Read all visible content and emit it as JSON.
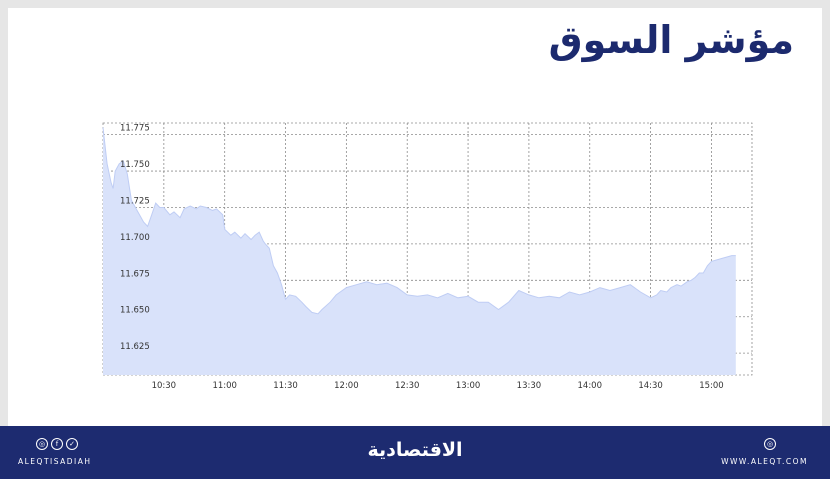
{
  "title": "مؤشر السوق",
  "colors": {
    "title": "#1c2a6e",
    "area_fill": "#d9e2fa",
    "area_line": "#bfcdf4",
    "grid": "#8c8c8c",
    "footer": "#1d2b70"
  },
  "chart_data": {
    "type": "area",
    "title": "",
    "xlabel": "",
    "ylabel": "",
    "x_tick_labels": [
      "10:30",
      "11:00",
      "11:30",
      "12:00",
      "12:30",
      "13:00",
      "13:30",
      "14:00",
      "14:30",
      "15:00"
    ],
    "y_tick_labels": [
      "11.775",
      "11.750",
      "11.725",
      "11.700",
      "11.675",
      "11.650",
      "11.625"
    ],
    "ylim": [
      11.61,
      11.783
    ],
    "xlim": [
      "10:00",
      "15:20"
    ],
    "grid": true,
    "series": [
      {
        "x": [
          "10:00",
          "10:02",
          "10:04",
          "10:05",
          "10:06",
          "10:08",
          "10:10",
          "10:12",
          "10:14",
          "10:16",
          "10:18",
          "10:20",
          "10:22",
          "10:24",
          "10:26",
          "10:28",
          "10:30",
          "10:33",
          "10:35",
          "10:38",
          "10:40",
          "10:43",
          "10:46",
          "10:48",
          "10:51",
          "10:54",
          "10:56",
          "10:59",
          "11:00",
          "11:03",
          "11:05",
          "11:08",
          "11:10",
          "11:13",
          "11:15",
          "11:17",
          "11:19",
          "11:20",
          "11:22",
          "11:24",
          "11:26",
          "11:28",
          "11:30",
          "11:32",
          "11:35",
          "11:38",
          "11:40",
          "11:43",
          "11:46",
          "11:48",
          "11:52",
          "11:55",
          "12:00",
          "12:05",
          "12:10",
          "12:15",
          "12:20",
          "12:25",
          "12:30",
          "12:35",
          "12:40",
          "12:45",
          "12:50",
          "12:55",
          "13:00",
          "13:05",
          "13:10",
          "13:15",
          "13:20",
          "13:25",
          "13:30",
          "13:35",
          "13:40",
          "13:45",
          "13:50",
          "13:55",
          "14:00",
          "14:05",
          "14:10",
          "14:15",
          "14:20",
          "14:25",
          "14:30",
          "14:33",
          "14:35",
          "14:38",
          "14:40",
          "14:43",
          "14:45",
          "14:48",
          "14:50",
          "14:52",
          "14:54",
          "14:56",
          "14:58",
          "15:00",
          "15:05",
          "15:10",
          "15:12"
        ],
        "values": [
          11.78,
          11.755,
          11.742,
          11.738,
          11.75,
          11.755,
          11.757,
          11.748,
          11.73,
          11.725,
          11.72,
          11.715,
          11.712,
          11.72,
          11.728,
          11.725,
          11.725,
          11.72,
          11.722,
          11.718,
          11.724,
          11.726,
          11.724,
          11.726,
          11.725,
          11.723,
          11.724,
          11.72,
          11.71,
          11.706,
          11.708,
          11.704,
          11.707,
          11.703,
          11.706,
          11.708,
          11.702,
          11.7,
          11.697,
          11.685,
          11.68,
          11.672,
          11.662,
          11.665,
          11.664,
          11.66,
          11.657,
          11.653,
          11.652,
          11.655,
          11.66,
          11.665,
          11.67,
          11.672,
          11.674,
          11.672,
          11.673,
          11.67,
          11.665,
          11.664,
          11.665,
          11.663,
          11.666,
          11.663,
          11.664,
          11.66,
          11.66,
          11.655,
          11.66,
          11.668,
          11.665,
          11.663,
          11.664,
          11.663,
          11.667,
          11.665,
          11.667,
          11.67,
          11.668,
          11.67,
          11.672,
          11.667,
          11.663,
          11.665,
          11.668,
          11.667,
          11.67,
          11.672,
          11.671,
          11.674,
          11.675,
          11.677,
          11.68,
          11.68,
          11.685,
          11.688,
          11.69,
          11.692,
          11.692
        ]
      }
    ]
  },
  "footer": {
    "social_icons": [
      "instagram-icon",
      "facebook-icon",
      "twitter-icon"
    ],
    "social_glyphs": [
      "◎",
      "f",
      "✓"
    ],
    "handle": "ALEQTISADIAH",
    "logo": "الاقتصادية",
    "web_icon_glyph": "◎",
    "website": "WWW.ALEQT.COM"
  }
}
